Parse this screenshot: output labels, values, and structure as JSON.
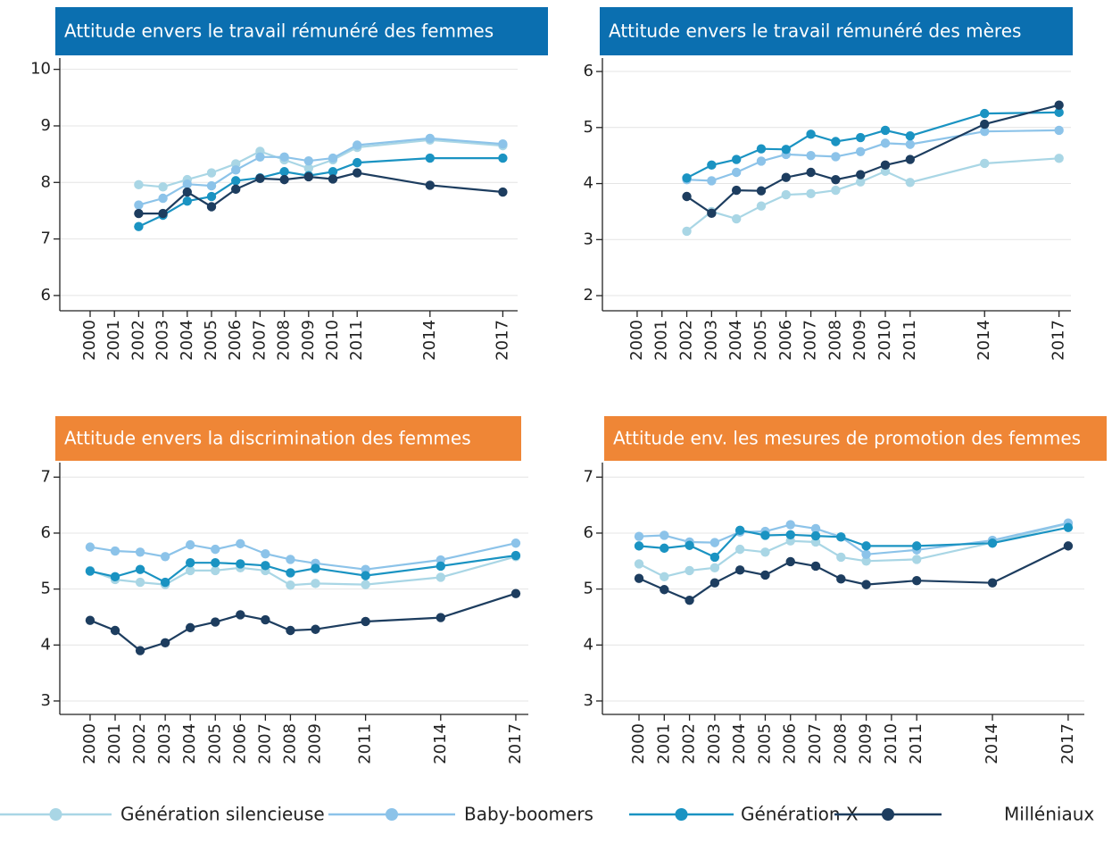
{
  "chart_data": [
    {
      "type": "line",
      "title": "Attitude envers le travail rémunéré des femmes",
      "title_color": "#0b6fb0",
      "x": [
        2002,
        2003,
        2004,
        2005,
        2006,
        2007,
        2008,
        2009,
        2010,
        2011,
        2014,
        2017
      ],
      "xlim": [
        1998.75,
        2017.61
      ],
      "xticks": [
        2000,
        2001,
        2002,
        2003,
        2004,
        2005,
        2006,
        2007,
        2008,
        2009,
        2010,
        2011,
        2014,
        2017
      ],
      "ylim": [
        5.73,
        10.2
      ],
      "yticks": [
        6,
        7,
        8,
        9,
        10
      ],
      "grid": true,
      "series": [
        {
          "name": "Génération silencieuse",
          "color": "#a9d6e5",
          "values": [
            7.96,
            7.92,
            8.05,
            8.17,
            8.33,
            8.55,
            8.4,
            8.25,
            8.4,
            8.62,
            8.75,
            8.65
          ]
        },
        {
          "name": "Baby-boomers",
          "color": "#8cc3e9",
          "values": [
            7.6,
            7.72,
            7.97,
            7.94,
            8.22,
            8.45,
            8.45,
            8.38,
            8.43,
            8.66,
            8.78,
            8.68
          ]
        },
        {
          "name": "Génération X",
          "color": "#1a93c2",
          "values": [
            7.22,
            7.42,
            7.67,
            7.75,
            8.03,
            8.08,
            8.19,
            8.12,
            8.19,
            8.35,
            8.43,
            8.43
          ]
        },
        {
          "name": "Milléniaux",
          "color": "#1d3d5f",
          "values": [
            7.45,
            7.45,
            7.83,
            7.57,
            7.88,
            8.07,
            8.05,
            8.1,
            8.06,
            8.17,
            7.95,
            7.83
          ]
        }
      ]
    },
    {
      "type": "line",
      "title": "Attitude envers le travail rémunéré des mères",
      "title_color": "#0b6fb0",
      "x": [
        2002,
        2003,
        2004,
        2005,
        2006,
        2007,
        2008,
        2009,
        2010,
        2011,
        2014,
        2017
      ],
      "xlim": [
        1998.6,
        2017.48
      ],
      "xticks": [
        2000,
        2001,
        2002,
        2003,
        2004,
        2005,
        2006,
        2007,
        2008,
        2009,
        2010,
        2011,
        2014,
        2017
      ],
      "ylim": [
        1.73,
        6.24
      ],
      "yticks": [
        2,
        3,
        4,
        5,
        6
      ],
      "grid": true,
      "series": [
        {
          "name": "Génération silencieuse",
          "color": "#a9d6e5",
          "values": [
            3.15,
            3.5,
            3.37,
            3.6,
            3.8,
            3.82,
            3.88,
            4.03,
            4.22,
            4.02,
            4.36,
            4.45
          ]
        },
        {
          "name": "Baby-boomers",
          "color": "#8cc3e9",
          "values": [
            4.07,
            4.05,
            4.2,
            4.4,
            4.52,
            4.5,
            4.48,
            4.57,
            4.72,
            4.7,
            4.93,
            4.95
          ]
        },
        {
          "name": "Génération X",
          "color": "#1a93c2",
          "values": [
            4.1,
            4.33,
            4.43,
            4.62,
            4.61,
            4.88,
            4.75,
            4.82,
            4.95,
            4.85,
            5.25,
            5.27
          ]
        },
        {
          "name": "Milléniaux",
          "color": "#1d3d5f",
          "values": [
            3.77,
            3.47,
            3.88,
            3.87,
            4.11,
            4.2,
            4.07,
            4.16,
            4.33,
            4.43,
            5.06,
            5.4
          ]
        }
      ]
    },
    {
      "type": "line",
      "title": "Attitude envers la discrimination des femmes",
      "title_color": "#ef8636",
      "x": [
        2000,
        2001,
        2002,
        2003,
        2004,
        2005,
        2006,
        2007,
        2008,
        2009,
        2011,
        2014,
        2017
      ],
      "xlim": [
        1998.79,
        2017.5
      ],
      "xticks": [
        2000,
        2001,
        2002,
        2003,
        2004,
        2005,
        2006,
        2007,
        2008,
        2009,
        2011,
        2014,
        2017
      ],
      "ylim": [
        2.76,
        7.26
      ],
      "yticks": [
        3,
        4,
        5,
        6,
        7
      ],
      "grid": true,
      "series": [
        {
          "name": "Génération silencieuse",
          "color": "#a9d6e5",
          "values": [
            5.33,
            5.17,
            5.12,
            5.08,
            5.33,
            5.33,
            5.38,
            5.33,
            5.07,
            5.1,
            5.08,
            5.21,
            5.58
          ]
        },
        {
          "name": "Baby-boomers",
          "color": "#8cc3e9",
          "values": [
            5.75,
            5.68,
            5.66,
            5.58,
            5.79,
            5.71,
            5.81,
            5.63,
            5.53,
            5.46,
            5.35,
            5.52,
            5.82
          ]
        },
        {
          "name": "Génération X",
          "color": "#1a93c2",
          "values": [
            5.32,
            5.22,
            5.35,
            5.12,
            5.47,
            5.47,
            5.45,
            5.42,
            5.29,
            5.37,
            5.24,
            5.41,
            5.6
          ]
        },
        {
          "name": "Milléniaux",
          "color": "#1d3d5f",
          "values": [
            4.44,
            4.26,
            3.9,
            4.04,
            4.31,
            4.41,
            4.54,
            4.45,
            4.26,
            4.28,
            4.42,
            4.49,
            4.92
          ]
        }
      ]
    },
    {
      "type": "line",
      "title": "Attitude env. les mesures de promotion des femmes",
      "title_color": "#ef8636",
      "x": [
        2000,
        2001,
        2002,
        2003,
        2004,
        2005,
        2006,
        2007,
        2008,
        2009,
        2011,
        2014,
        2017
      ],
      "xlim": [
        1998.55,
        2017.64
      ],
      "xticks": [
        2000,
        2001,
        2002,
        2003,
        2004,
        2005,
        2006,
        2007,
        2008,
        2009,
        2010,
        2011,
        2014,
        2017
      ],
      "ylim": [
        2.76,
        7.26
      ],
      "yticks": [
        3,
        4,
        5,
        6,
        7
      ],
      "grid": true,
      "series": [
        {
          "name": "Génération silencieuse",
          "color": "#a9d6e5",
          "values": [
            5.45,
            5.22,
            5.33,
            5.38,
            5.71,
            5.66,
            5.86,
            5.84,
            5.57,
            5.5,
            5.53,
            5.83,
            6.17
          ]
        },
        {
          "name": "Baby-boomers",
          "color": "#8cc3e9",
          "values": [
            5.94,
            5.96,
            5.84,
            5.83,
            6.02,
            6.03,
            6.15,
            6.08,
            5.93,
            5.62,
            5.7,
            5.87,
            6.18
          ]
        },
        {
          "name": "Génération X",
          "color": "#1a93c2",
          "values": [
            5.77,
            5.73,
            5.78,
            5.57,
            6.05,
            5.96,
            5.97,
            5.95,
            5.93,
            5.77,
            5.77,
            5.82,
            6.1
          ]
        },
        {
          "name": "Milléniaux",
          "color": "#1d3d5f",
          "values": [
            5.19,
            4.99,
            4.8,
            5.11,
            5.34,
            5.25,
            5.49,
            5.41,
            5.18,
            5.08,
            5.15,
            5.11,
            5.77
          ]
        }
      ]
    }
  ]
}
